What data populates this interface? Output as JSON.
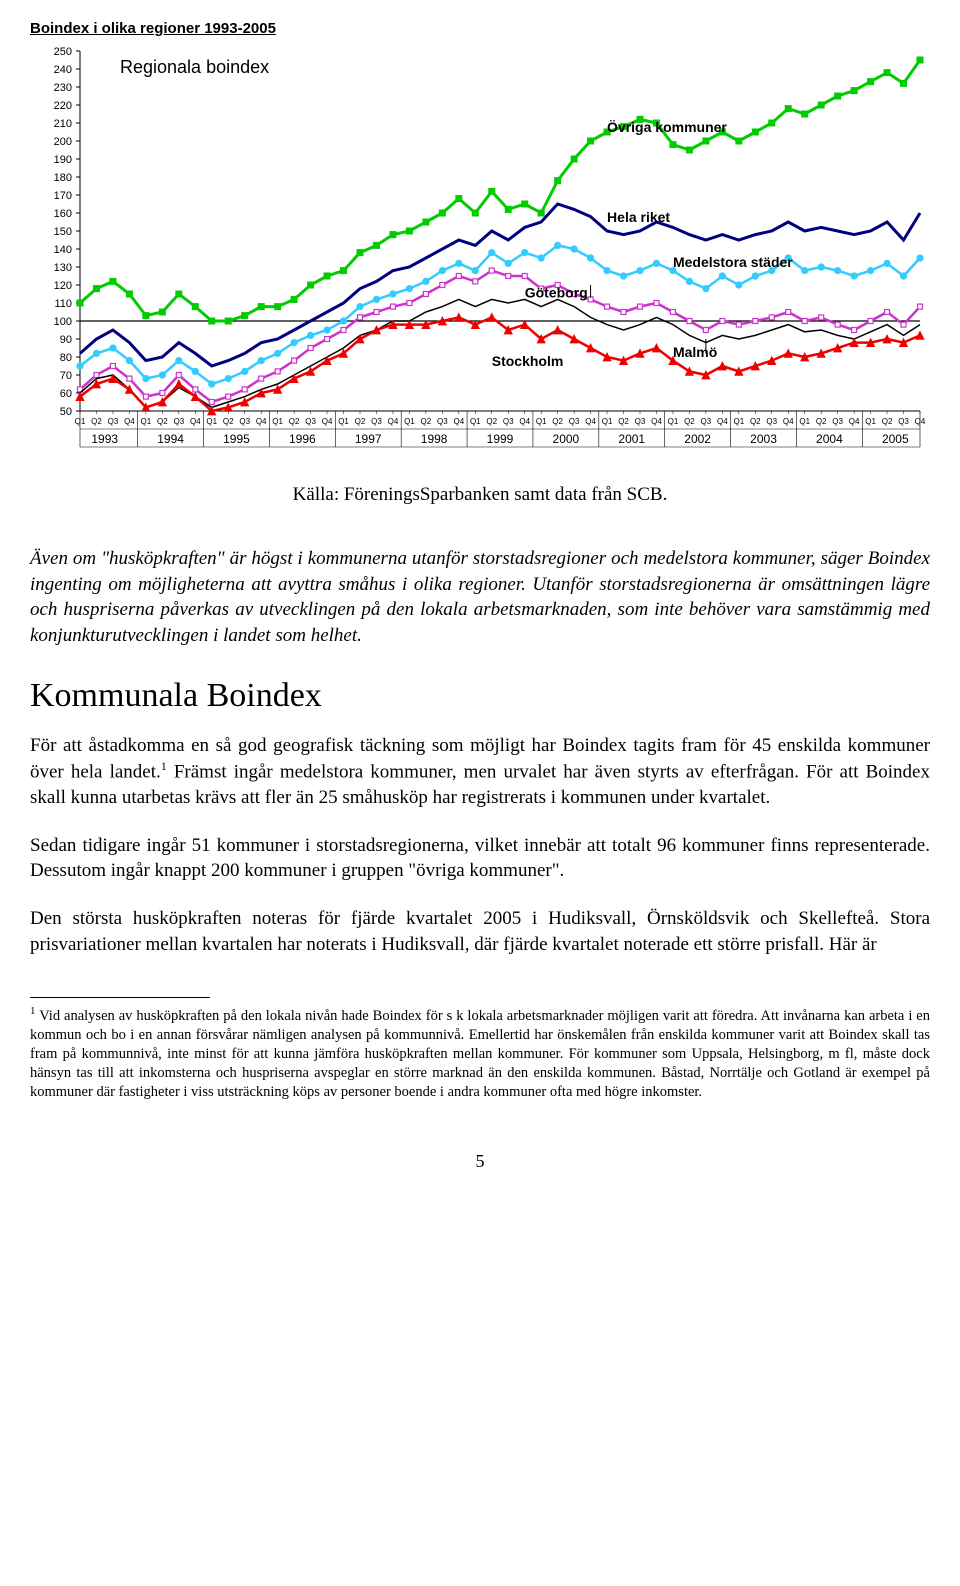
{
  "chart": {
    "title": "Boindex i olika regioner 1993-2005",
    "subtitle": "Regionala boindex",
    "type": "line",
    "x_years": [
      "1993",
      "1994",
      "1995",
      "1996",
      "1997",
      "1998",
      "1999",
      "2000",
      "2001",
      "2002",
      "2003",
      "2004",
      "2005"
    ],
    "x_quarters": [
      "Q1",
      "Q2",
      "Q3",
      "Q4"
    ],
    "ylim": [
      50,
      250
    ],
    "ytick_step": 10,
    "yticks": [
      50,
      60,
      70,
      80,
      90,
      100,
      110,
      120,
      130,
      140,
      150,
      160,
      170,
      180,
      190,
      200,
      210,
      220,
      230,
      240,
      250
    ],
    "background_color": "#ffffff",
    "grid_color": "#000000",
    "axis_color": "#000000",
    "tick_font_size": 11,
    "year_font_size": 12,
    "ref_line_y": 100,
    "series": {
      "ovriga": {
        "label": "Övriga kommuner",
        "color": "#00cc00",
        "line_width": 3,
        "marker": "square",
        "marker_size": 6,
        "label_pos": {
          "x": 32,
          "y": 205
        },
        "data": [
          110,
          118,
          122,
          115,
          103,
          105,
          115,
          108,
          100,
          100,
          103,
          108,
          108,
          112,
          120,
          125,
          128,
          138,
          142,
          148,
          150,
          155,
          160,
          168,
          160,
          172,
          162,
          165,
          160,
          178,
          190,
          200,
          205,
          208,
          212,
          210,
          198,
          195,
          200,
          205,
          200,
          205,
          210,
          218,
          215,
          220,
          225,
          228,
          233,
          238,
          232,
          245
        ]
      },
      "hela_riket": {
        "label": "Hela riket",
        "color": "#000080",
        "line_width": 3,
        "marker": "none",
        "label_pos": {
          "x": 32,
          "y": 155
        },
        "data": [
          82,
          90,
          95,
          88,
          78,
          80,
          88,
          82,
          75,
          78,
          82,
          88,
          90,
          95,
          100,
          105,
          110,
          118,
          122,
          128,
          130,
          135,
          140,
          145,
          142,
          150,
          145,
          152,
          155,
          165,
          162,
          158,
          150,
          148,
          150,
          155,
          152,
          148,
          145,
          148,
          145,
          148,
          150,
          155,
          150,
          152,
          150,
          148,
          150,
          155,
          145,
          160
        ]
      },
      "medelstora": {
        "label": "Medelstora städer",
        "color": "#33ccff",
        "line_width": 2.5,
        "marker": "circle",
        "marker_size": 5,
        "label_pos": {
          "x": 36,
          "y": 130
        },
        "data": [
          75,
          82,
          85,
          78,
          68,
          70,
          78,
          72,
          65,
          68,
          72,
          78,
          82,
          88,
          92,
          95,
          100,
          108,
          112,
          115,
          118,
          122,
          128,
          132,
          128,
          138,
          132,
          138,
          135,
          142,
          140,
          135,
          128,
          125,
          128,
          132,
          128,
          122,
          118,
          125,
          120,
          125,
          128,
          135,
          128,
          130,
          128,
          125,
          128,
          132,
          125,
          135
        ]
      },
      "goteborg": {
        "label": "Göteborg",
        "color": "#cc33cc",
        "line_width": 2.5,
        "marker": "square-open",
        "marker_size": 5,
        "label_pos": {
          "x": 27,
          "y": 113
        },
        "data": [
          62,
          70,
          75,
          68,
          58,
          60,
          70,
          62,
          55,
          58,
          62,
          68,
          72,
          78,
          85,
          90,
          95,
          102,
          105,
          108,
          110,
          115,
          120,
          125,
          122,
          128,
          125,
          125,
          118,
          120,
          115,
          112,
          108,
          105,
          108,
          110,
          105,
          100,
          95,
          100,
          98,
          100,
          102,
          105,
          100,
          102,
          98,
          95,
          100,
          105,
          98,
          108
        ]
      },
      "stockholm": {
        "label": "Stockholm",
        "color": "#000000",
        "line_width": 1.5,
        "marker": "none",
        "label_pos": {
          "x": 25,
          "y": 75
        },
        "data": [
          60,
          68,
          70,
          62,
          52,
          55,
          63,
          58,
          52,
          55,
          58,
          62,
          65,
          70,
          75,
          80,
          85,
          92,
          95,
          100,
          100,
          105,
          108,
          112,
          108,
          112,
          110,
          112,
          108,
          112,
          108,
          102,
          98,
          95,
          98,
          102,
          98,
          92,
          88,
          92,
          90,
          92,
          95,
          98,
          94,
          95,
          92,
          90,
          94,
          98,
          92,
          98
        ]
      },
      "malmo": {
        "label": "Malmö",
        "color": "#ee0000",
        "line_width": 2.5,
        "marker": "triangle",
        "marker_size": 5,
        "label_pos": {
          "x": 36,
          "y": 80
        },
        "data": [
          58,
          65,
          68,
          62,
          52,
          55,
          65,
          58,
          50,
          52,
          55,
          60,
          62,
          68,
          72,
          78,
          82,
          90,
          95,
          98,
          98,
          98,
          100,
          102,
          98,
          102,
          95,
          98,
          90,
          95,
          90,
          85,
          80,
          78,
          82,
          85,
          78,
          72,
          70,
          75,
          72,
          75,
          78,
          82,
          80,
          82,
          85,
          88,
          88,
          90,
          88,
          92
        ]
      }
    }
  },
  "source": "Källa: FöreningsSparbanken samt data från SCB.",
  "paragraphs": {
    "italic": "Även om \"husköpkraften\" är högst i kommunerna utanför storstadsregioner och medelstora kommuner, säger Boindex ingenting om möjligheterna att avyttra småhus i olika regioner. Utanför storstadsregionerna är omsättningen lägre och huspriserna påverkas av utvecklingen på den lokala arbetsmarknaden, som inte behöver vara samstämmig med konjunkturutvecklingen i landet som helhet.",
    "heading": "Kommunala Boindex",
    "p1a": "För att åstadkomma en så god geografisk täckning som möjligt har Boindex tagits fram för 45 enskilda kommuner över hela landet.",
    "p1b": " Främst ingår medelstora kommuner, men urvalet har även styrts av efterfrågan. För att Boindex skall kunna utarbetas krävs att fler än 25 småhusköp har registrerats i kommunen under kvartalet.",
    "p2": "Sedan tidigare ingår 51 kommuner i storstadsregionerna, vilket innebär att totalt 96 kommuner finns representerade. Dessutom ingår knappt 200 kommuner i gruppen \"övriga kommuner\".",
    "p3": "Den största husköpkraften noteras för fjärde kvartalet 2005 i Hudiksvall, Örnsköldsvik och Skellefteå. Stora prisvariationer mellan kvartalen har noterats i Hudiksvall, där fjärde kvartalet noterade ett större prisfall. Här är"
  },
  "footnote": {
    "num": "1",
    "text": "Vid analysen av husköpkraften på den lokala nivån hade Boindex för s k lokala arbetsmarknader möjligen varit att föredra. Att invånarna kan arbeta i en kommun och bo i en annan försvårar nämligen analysen på kommunnivå. Emellertid har önskemålen från enskilda kommuner varit att Boindex skall tas fram på kommunnivå, inte minst för att kunna jämföra husköpkraften mellan kommuner. För kommuner som Uppsala, Helsingborg, m fl, måste dock hänsyn tas till att inkomsterna och huspriserna avspeglar en större marknad än den enskilda kommunen. Båstad, Norrtälje och Gotland är exempel på kommuner där fastigheter i viss utsträckning köps av personer boende i andra kommuner ofta med högre inkomster."
  },
  "page_number": "5"
}
